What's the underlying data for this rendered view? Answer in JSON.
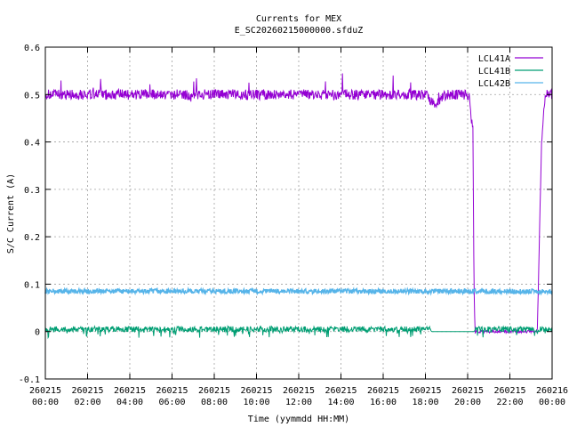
{
  "chart_data": {
    "type": "line",
    "title": "Currents for MEX",
    "subtitle": "E_SC20260215000000.sfduZ",
    "xlabel": "Time (yymmdd HH:MM)",
    "ylabel": "S/C Current (A)",
    "ylim": [
      -0.1,
      0.6
    ],
    "yticks": [
      "-0.1",
      "0",
      "0.1",
      "0.2",
      "0.3",
      "0.4",
      "0.5",
      "0.6"
    ],
    "xlim_hours": [
      0,
      24
    ],
    "xticks": [
      {
        "date": "260215",
        "time": "00:00"
      },
      {
        "date": "260215",
        "time": "02:00"
      },
      {
        "date": "260215",
        "time": "04:00"
      },
      {
        "date": "260215",
        "time": "06:00"
      },
      {
        "date": "260215",
        "time": "08:00"
      },
      {
        "date": "260215",
        "time": "10:00"
      },
      {
        "date": "260215",
        "time": "12:00"
      },
      {
        "date": "260215",
        "time": "14:00"
      },
      {
        "date": "260215",
        "time": "16:00"
      },
      {
        "date": "260215",
        "time": "18:00"
      },
      {
        "date": "260215",
        "time": "20:00"
      },
      {
        "date": "260215",
        "time": "22:00"
      },
      {
        "date": "260216",
        "time": "00:00"
      }
    ],
    "grid": true,
    "legend_position": "top-right",
    "series": [
      {
        "name": "LCL41A",
        "color": "#9400d3",
        "x_hours": [
          0,
          0.1,
          2,
          4,
          6,
          8,
          10,
          12,
          14,
          16,
          18,
          18.2,
          18.4,
          19,
          20,
          20.1,
          20.15,
          20.25,
          20.3,
          20.35,
          20.5,
          21,
          22,
          23,
          23.3,
          23.4,
          23.5,
          23.6,
          23.7,
          24
        ],
        "y": [
          0.5,
          0.5,
          0.5,
          0.5,
          0.5,
          0.5,
          0.5,
          0.5,
          0.5,
          0.5,
          0.5,
          0.49,
          0.48,
          0.5,
          0.5,
          0.5,
          0.45,
          0.43,
          0.1,
          0.0,
          0.0,
          0.0,
          0.0,
          0.0,
          0.0,
          0.2,
          0.4,
          0.46,
          0.5,
          0.5
        ]
      },
      {
        "name": "LCL41B",
        "color": "#009e73",
        "x_hours": [
          0,
          18.2,
          18.3,
          20.3,
          20.4,
          24
        ],
        "y": [
          0.005,
          0.005,
          0.0,
          0.0,
          0.005,
          0.005
        ]
      },
      {
        "name": "LCL42B",
        "color": "#56b4e9",
        "x_hours": [
          0,
          24
        ],
        "y": [
          0.085,
          0.085
        ]
      }
    ]
  }
}
